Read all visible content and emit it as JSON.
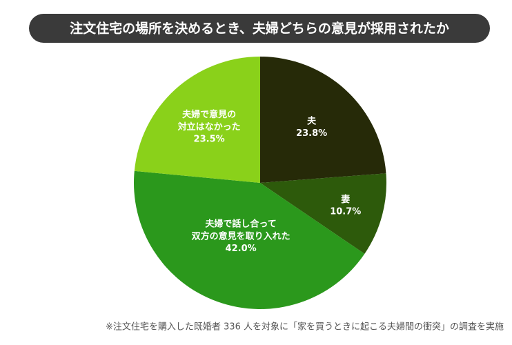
{
  "chart_data": {
    "type": "pie",
    "title": "注文住宅の場所を決めるとき、夫婦どちらの意見が採用されたか",
    "categories": [
      "夫",
      "妻",
      "夫婦で話し合って\n双方の意見を取り入れた",
      "夫婦で意見の\n対立はなかった"
    ],
    "values": [
      23.8,
      10.7,
      42.0,
      23.5
    ],
    "value_labels": [
      "23.8%",
      "10.7%",
      "42.0%",
      "23.5%"
    ],
    "colors": [
      "#262a08",
      "#2d5a0b",
      "#2b981c",
      "#8ad11a"
    ],
    "note": "※注文住宅を購入した既婚者 336 人を対象に「家を買うときに起こる夫婦間の衝突」の調査を実施"
  }
}
